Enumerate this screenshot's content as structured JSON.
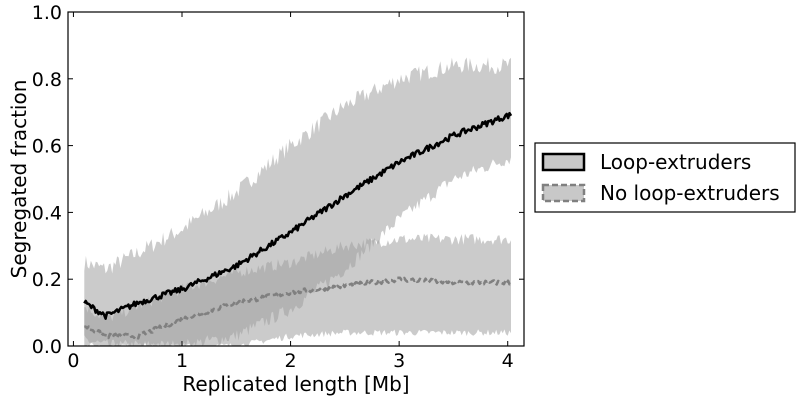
{
  "chart_data": {
    "type": "line",
    "xlabel": "Replicated length [Mb]",
    "ylabel": "Segregated fraction",
    "xlim": [
      -0.05,
      4.15
    ],
    "ylim": [
      0.0,
      1.0
    ],
    "xticks": [
      "0",
      "1",
      "2",
      "3",
      "4"
    ],
    "yticks": [
      "0.0",
      "0.2",
      "0.4",
      "0.6",
      "0.8",
      "1.0"
    ],
    "xtick_values": [
      0,
      1,
      2,
      3,
      4
    ],
    "ytick_values": [
      0.0,
      0.2,
      0.4,
      0.6,
      0.8,
      1.0
    ],
    "grid": false,
    "legend": {
      "placement": "outside-right"
    },
    "series": [
      {
        "name": "Loop-extruders",
        "color": "#000000",
        "band_color": "#c8c8c8",
        "line_style": "solid",
        "x": [
          0.1,
          0.3,
          0.6,
          1.0,
          1.5,
          2.0,
          2.5,
          3.0,
          3.5,
          4.0,
          4.03
        ],
        "mean": [
          0.13,
          0.09,
          0.13,
          0.17,
          0.24,
          0.34,
          0.45,
          0.55,
          0.63,
          0.69,
          0.69
        ],
        "lower": [
          0.02,
          0.0,
          0.0,
          0.0,
          0.03,
          0.11,
          0.23,
          0.38,
          0.5,
          0.56,
          0.56
        ],
        "upper": [
          0.25,
          0.23,
          0.28,
          0.35,
          0.46,
          0.6,
          0.72,
          0.8,
          0.84,
          0.84,
          0.84
        ]
      },
      {
        "name": "No loop-extruders",
        "color": "#808080",
        "band_color": "#c8c8c8",
        "line_style": "dashed",
        "x": [
          0.1,
          0.3,
          0.6,
          1.0,
          1.5,
          2.0,
          2.5,
          3.0,
          3.5,
          4.0,
          4.03
        ],
        "mean": [
          0.06,
          0.03,
          0.03,
          0.08,
          0.13,
          0.16,
          0.18,
          0.2,
          0.19,
          0.19,
          0.19
        ],
        "lower": [
          0.0,
          0.0,
          0.0,
          0.0,
          0.0,
          0.03,
          0.04,
          0.04,
          0.04,
          0.04,
          0.04
        ],
        "upper": [
          0.12,
          0.08,
          0.12,
          0.17,
          0.22,
          0.25,
          0.3,
          0.32,
          0.32,
          0.32,
          0.32
        ]
      }
    ]
  }
}
